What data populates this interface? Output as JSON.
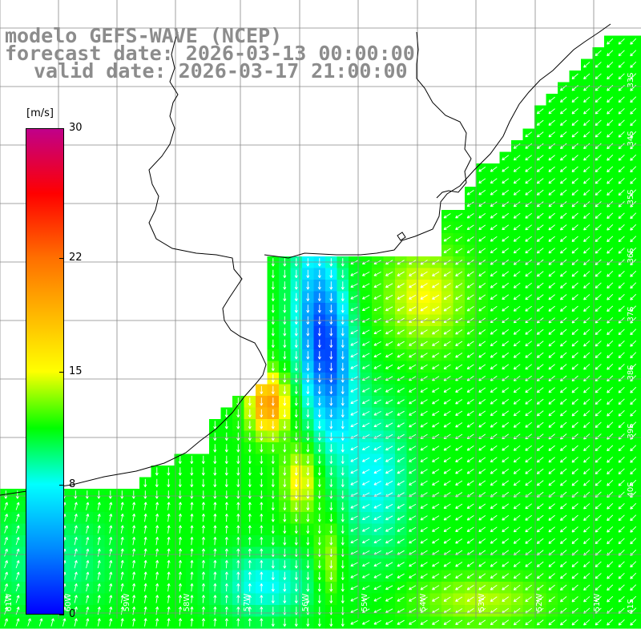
{
  "title": {
    "line1": "modelo GEFS-WAVE (NCEP)",
    "line2": "forecast date: 2026-03-13 00:00:00",
    "line3": "valid date: 2026-03-17 21:00:00"
  },
  "colorbar": {
    "unit": "[m/s]",
    "ticks": [
      "30",
      "22",
      "15",
      "8",
      "0"
    ],
    "tick_values": [
      30,
      22,
      15,
      8,
      0
    ],
    "range": [
      0,
      30
    ],
    "stops": [
      {
        "v": 0,
        "c": "#0000ff"
      },
      {
        "v": 4,
        "c": "#0088ff"
      },
      {
        "v": 8,
        "c": "#00ffff"
      },
      {
        "v": 11.5,
        "c": "#00ff00"
      },
      {
        "v": 15,
        "c": "#ffff00"
      },
      {
        "v": 22,
        "c": "#ff7000"
      },
      {
        "v": 26,
        "c": "#ff0000"
      },
      {
        "v": 30,
        "c": "#c0008a"
      }
    ]
  },
  "axes": {
    "lat_labels": [
      "33S",
      "34S",
      "35S",
      "36S",
      "37S",
      "38S",
      "39S",
      "40S",
      "41S"
    ],
    "lon_labels": [
      "61W",
      "60W",
      "59W",
      "58W",
      "57W",
      "56W",
      "55W",
      "54W",
      "53W",
      "52W",
      "51W"
    ]
  },
  "colors": {
    "ocean": "#00ff00",
    "coastline": "#000000",
    "grid": "#888888",
    "arrows": "#ffffff",
    "title": "#8c8c8c"
  }
}
